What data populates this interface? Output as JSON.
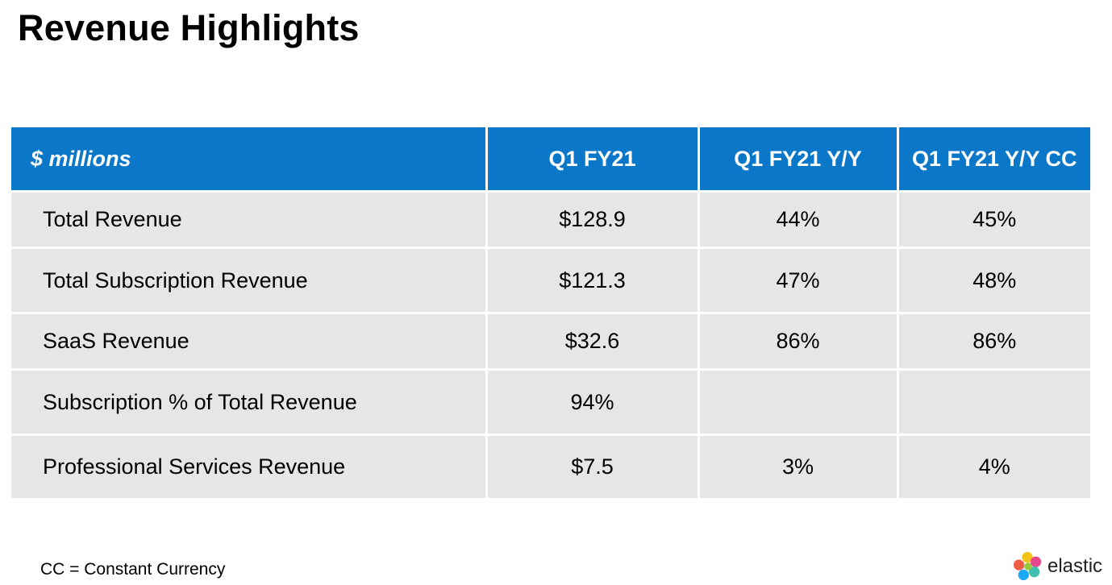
{
  "title": "Revenue Highlights",
  "table": {
    "headers": [
      "$ millions",
      "Q1 FY21",
      "Q1 FY21 Y/Y",
      "Q1 FY21 Y/Y CC"
    ],
    "rows": [
      [
        "Total Revenue",
        "$128.9",
        "44%",
        "45%"
      ],
      [
        "Total Subscription Revenue",
        "$121.3",
        "47%",
        "48%"
      ],
      [
        "SaaS Revenue",
        "$32.6",
        "86%",
        "86%"
      ],
      [
        "Subscription % of Total Revenue",
        "94%",
        "",
        ""
      ],
      [
        "Professional Services Revenue",
        "$7.5",
        "3%",
        "4%"
      ]
    ]
  },
  "footnote": "CC = Constant Currency",
  "logo": {
    "text": "elastic",
    "icon": "elastic-logo-icon"
  },
  "colors": {
    "header_bg": "#0a77c9",
    "row_bg": "#e6e6e6"
  }
}
